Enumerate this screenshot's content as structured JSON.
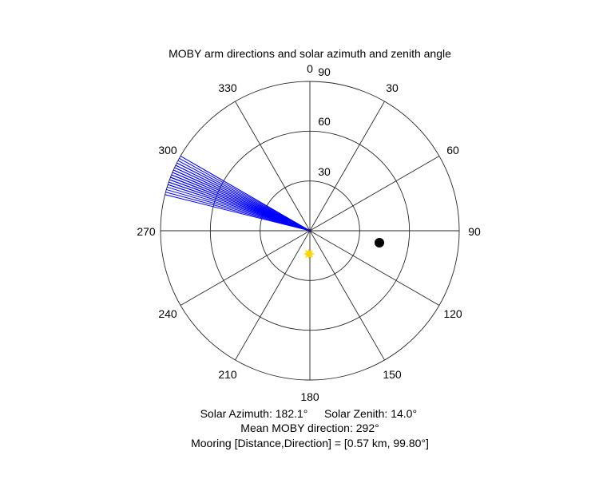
{
  "chart_data": {
    "type": "polar",
    "title": "MOBY arm directions and solar azimuth and zenith angle",
    "theta_ticks": [
      "0",
      "30",
      "60",
      "90",
      "120",
      "150",
      "180",
      "210",
      "240",
      "270",
      "300",
      "330"
    ],
    "theta_tick_values": [
      0,
      30,
      60,
      90,
      120,
      150,
      180,
      210,
      240,
      270,
      300,
      330
    ],
    "r_ticks": [
      "30",
      "60",
      "90"
    ],
    "r_tick_values": [
      30,
      60,
      90
    ],
    "rlim": [
      0,
      90
    ],
    "theta_zero": "top",
    "theta_direction": "clockwise",
    "grid": true,
    "series": [
      {
        "kind": "arm-lines",
        "color": "#0000ff",
        "r": 90,
        "theta": [
          284,
          285,
          286,
          287,
          288,
          288,
          289,
          289,
          290,
          290,
          290,
          291,
          291,
          291,
          292,
          292,
          292,
          292,
          293,
          293,
          293,
          294,
          294,
          294,
          295,
          295,
          296,
          296,
          297,
          297,
          298,
          299,
          300
        ]
      },
      {
        "kind": "mooring-point",
        "color": "#000000",
        "theta": 99.8,
        "r": 42.5
      },
      {
        "kind": "sun-point",
        "color": "#ffd400",
        "theta": 182.1,
        "r": 14.0
      }
    ],
    "annotations": {
      "line1_a": "Solar Azimuth: 182.1°",
      "line1_b": "Solar Zenith: 14.0°",
      "line2": "Mean MOBY direction: 292°",
      "line3": "Mooring [Distance,Direction] = [0.57 km, 99.80°]"
    }
  }
}
